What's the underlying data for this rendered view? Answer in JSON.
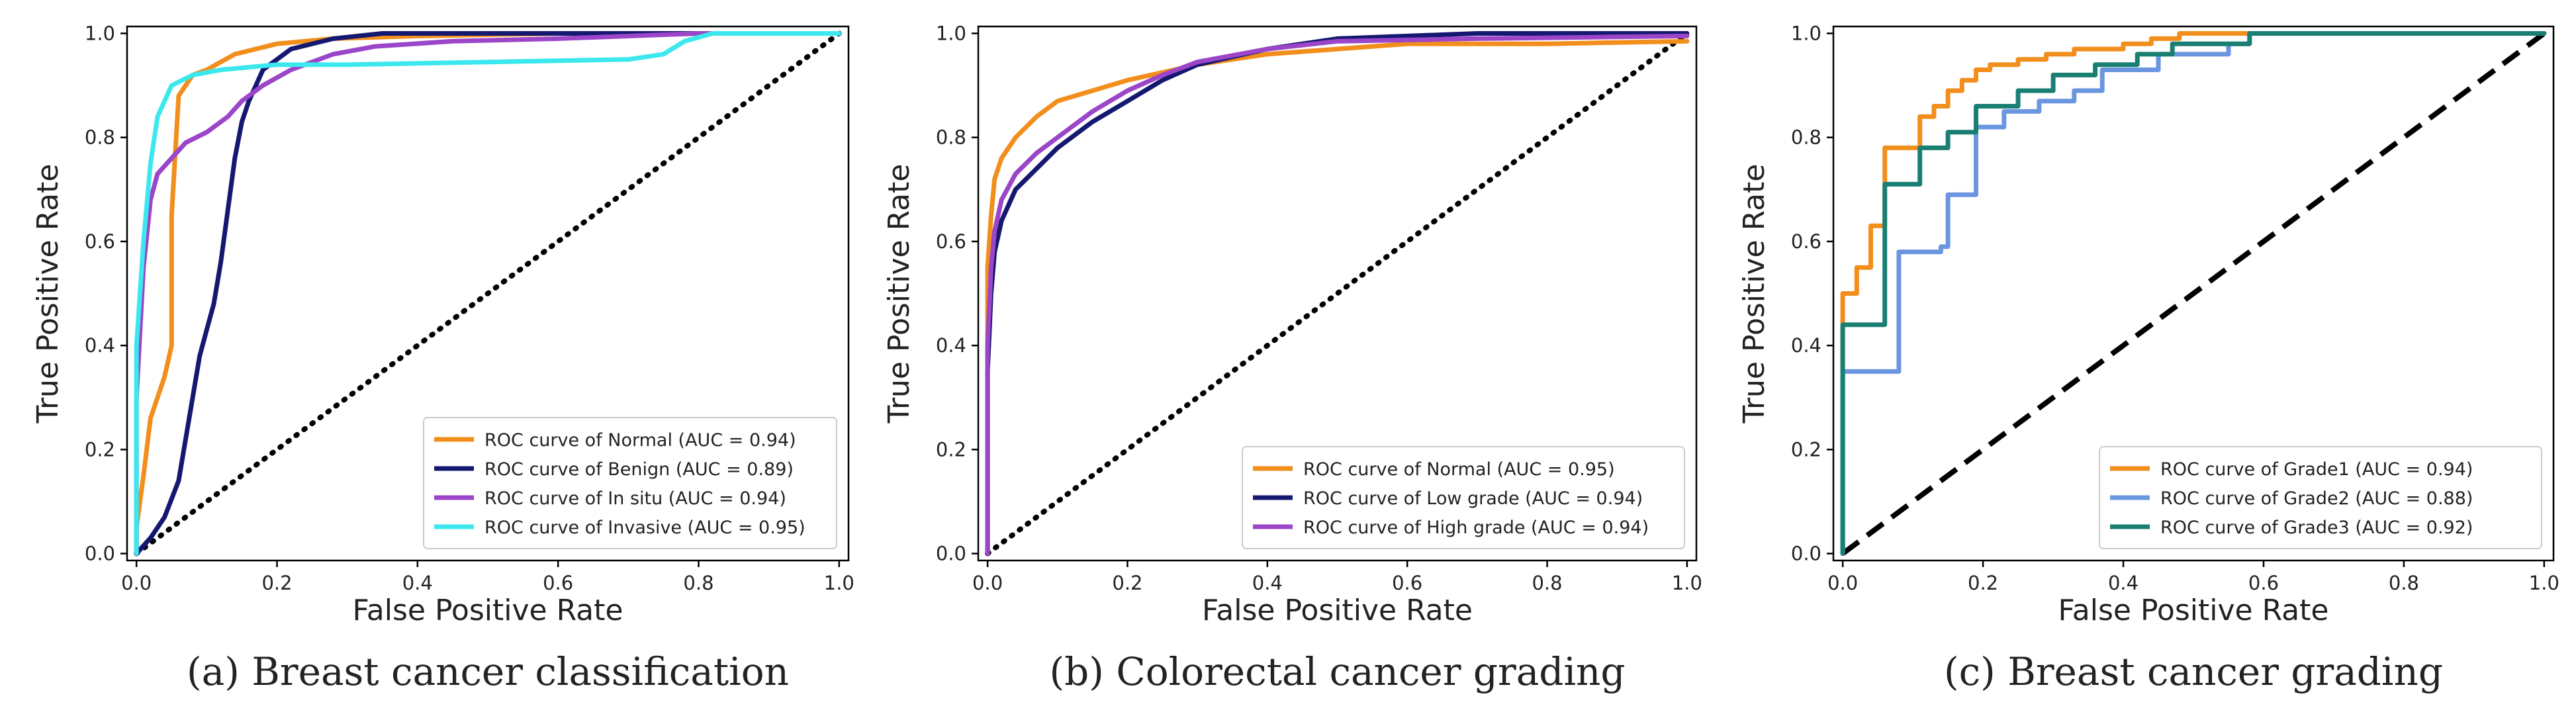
{
  "chart_data": [
    {
      "type": "line",
      "caption": "(a) Breast cancer classification",
      "xlabel": "False Positive Rate",
      "ylabel": "True Positive Rate",
      "xlim": [
        0.0,
        1.0
      ],
      "ylim": [
        0.0,
        1.0
      ],
      "xticks": [
        "0.0",
        "0.2",
        "0.4",
        "0.6",
        "0.8",
        "1.0"
      ],
      "yticks": [
        "0.0",
        "0.2",
        "0.4",
        "0.6",
        "0.8",
        "1.0"
      ],
      "grid": false,
      "legend_position": "lower-right",
      "diagonal": {
        "style": "dotted",
        "x": [
          0,
          1
        ],
        "y": [
          0,
          1
        ]
      },
      "series": [
        {
          "name": "ROC curve of  Normal (AUC = 0.94)",
          "color": "#f28e1c",
          "x": [
            0.0,
            0.0,
            0.01,
            0.02,
            0.03,
            0.04,
            0.05,
            0.05,
            0.06,
            0.08,
            0.1,
            0.14,
            0.2,
            0.28,
            0.4,
            0.6,
            0.8,
            1.0
          ],
          "y": [
            0.0,
            0.05,
            0.15,
            0.26,
            0.3,
            0.34,
            0.4,
            0.65,
            0.88,
            0.92,
            0.93,
            0.96,
            0.98,
            0.99,
            0.995,
            1.0,
            1.0,
            1.0
          ]
        },
        {
          "name": "ROC curve of  Benign (AUC = 0.89)",
          "color": "#151870",
          "x": [
            0.0,
            0.02,
            0.04,
            0.06,
            0.07,
            0.08,
            0.09,
            0.1,
            0.11,
            0.12,
            0.13,
            0.14,
            0.15,
            0.16,
            0.18,
            0.22,
            0.28,
            0.35,
            0.5,
            0.7,
            1.0
          ],
          "y": [
            0.0,
            0.03,
            0.07,
            0.14,
            0.22,
            0.3,
            0.38,
            0.43,
            0.48,
            0.56,
            0.66,
            0.76,
            0.83,
            0.87,
            0.93,
            0.97,
            0.99,
            1.0,
            1.0,
            1.0,
            1.0
          ]
        },
        {
          "name": "ROC curve of  In situ (AUC = 0.94)",
          "color": "#9b45c8",
          "x": [
            0.0,
            0.0,
            0.01,
            0.02,
            0.03,
            0.05,
            0.07,
            0.1,
            0.13,
            0.15,
            0.18,
            0.22,
            0.28,
            0.34,
            0.45,
            0.6,
            0.8,
            1.0
          ],
          "y": [
            0.0,
            0.3,
            0.55,
            0.68,
            0.73,
            0.76,
            0.79,
            0.81,
            0.84,
            0.87,
            0.9,
            0.93,
            0.96,
            0.975,
            0.985,
            0.99,
            1.0,
            1.0
          ]
        },
        {
          "name": "ROC curve of  Invasive (AUC = 0.95)",
          "color": "#3ce8ee",
          "x": [
            0.0,
            0.0,
            0.01,
            0.02,
            0.03,
            0.05,
            0.08,
            0.12,
            0.2,
            0.3,
            0.5,
            0.7,
            0.75,
            0.78,
            0.82,
            0.9,
            1.0
          ],
          "y": [
            0.0,
            0.4,
            0.6,
            0.75,
            0.84,
            0.9,
            0.92,
            0.93,
            0.94,
            0.94,
            0.945,
            0.95,
            0.96,
            0.985,
            1.0,
            1.0,
            1.0
          ]
        }
      ]
    },
    {
      "type": "line",
      "caption": "(b) Colorectal cancer grading",
      "xlabel": "False Positive Rate",
      "ylabel": "True Positive Rate",
      "xlim": [
        0.0,
        1.0
      ],
      "ylim": [
        0.0,
        1.0
      ],
      "xticks": [
        "0.0",
        "0.2",
        "0.4",
        "0.6",
        "0.8",
        "1.0"
      ],
      "yticks": [
        "0.0",
        "0.2",
        "0.4",
        "0.6",
        "0.8",
        "1.0"
      ],
      "grid": false,
      "legend_position": "lower-right",
      "diagonal": {
        "style": "dotted",
        "x": [
          0,
          1
        ],
        "y": [
          0,
          1
        ]
      },
      "series": [
        {
          "name": "ROC curve of  Normal (AUC = 0.95)",
          "color": "#f28e1c",
          "x": [
            0.0,
            0.0,
            0.005,
            0.01,
            0.02,
            0.04,
            0.07,
            0.1,
            0.15,
            0.2,
            0.3,
            0.4,
            0.5,
            0.6,
            0.8,
            1.0
          ],
          "y": [
            0.0,
            0.55,
            0.65,
            0.72,
            0.76,
            0.8,
            0.84,
            0.87,
            0.89,
            0.91,
            0.94,
            0.96,
            0.97,
            0.98,
            0.98,
            0.985
          ]
        },
        {
          "name": "ROC curve of  Low grade (AUC = 0.94)",
          "color": "#151870",
          "x": [
            0.0,
            0.0,
            0.005,
            0.01,
            0.02,
            0.04,
            0.07,
            0.1,
            0.15,
            0.2,
            0.25,
            0.3,
            0.4,
            0.5,
            0.7,
            1.0
          ],
          "y": [
            0.0,
            0.35,
            0.5,
            0.58,
            0.64,
            0.7,
            0.74,
            0.78,
            0.83,
            0.87,
            0.91,
            0.94,
            0.97,
            0.99,
            1.0,
            1.0
          ]
        },
        {
          "name": "ROC curve of  High grade (AUC = 0.94)",
          "color": "#9b45c8",
          "x": [
            0.0,
            0.0,
            0.005,
            0.01,
            0.02,
            0.04,
            0.07,
            0.1,
            0.15,
            0.2,
            0.25,
            0.3,
            0.4,
            0.5,
            0.7,
            1.0
          ],
          "y": [
            0.0,
            0.4,
            0.55,
            0.62,
            0.68,
            0.73,
            0.77,
            0.8,
            0.85,
            0.89,
            0.92,
            0.945,
            0.97,
            0.985,
            0.99,
            0.995
          ]
        }
      ]
    },
    {
      "type": "line",
      "caption": "(c) Breast cancer grading",
      "xlabel": "False Positive Rate",
      "ylabel": "True Positive Rate",
      "xlim": [
        0.0,
        1.0
      ],
      "ylim": [
        0.0,
        1.0
      ],
      "xticks": [
        "0.0",
        "0.2",
        "0.4",
        "0.6",
        "0.8",
        "1.0"
      ],
      "yticks": [
        "0.0",
        "0.2",
        "0.4",
        "0.6",
        "0.8",
        "1.0"
      ],
      "grid": false,
      "legend_position": "lower-right",
      "diagonal": {
        "style": "dashed",
        "x": [
          0,
          1
        ],
        "y": [
          0,
          1
        ]
      },
      "series": [
        {
          "name": "ROC curve of  Grade1 (AUC = 0.94)",
          "color": "#f28e1c",
          "x": [
            0.0,
            0.0,
            0.0,
            0.02,
            0.02,
            0.04,
            0.04,
            0.06,
            0.06,
            0.11,
            0.11,
            0.13,
            0.13,
            0.15,
            0.15,
            0.17,
            0.17,
            0.19,
            0.19,
            0.21,
            0.21,
            0.25,
            0.25,
            0.29,
            0.29,
            0.33,
            0.33,
            0.4,
            0.4,
            0.44,
            0.44,
            0.48,
            0.48,
            1.0
          ],
          "y": [
            0.0,
            0.44,
            0.5,
            0.5,
            0.55,
            0.55,
            0.63,
            0.63,
            0.78,
            0.78,
            0.84,
            0.84,
            0.86,
            0.86,
            0.89,
            0.89,
            0.91,
            0.91,
            0.93,
            0.93,
            0.94,
            0.94,
            0.95,
            0.95,
            0.96,
            0.96,
            0.97,
            0.97,
            0.98,
            0.98,
            0.99,
            0.99,
            1.0,
            1.0
          ]
        },
        {
          "name": "ROC curve of  Grade2 (AUC = 0.88)",
          "color": "#6a96e0",
          "x": [
            0.0,
            0.0,
            0.0,
            0.08,
            0.08,
            0.14,
            0.14,
            0.15,
            0.15,
            0.19,
            0.19,
            0.23,
            0.23,
            0.28,
            0.28,
            0.33,
            0.33,
            0.37,
            0.37,
            0.45,
            0.45,
            0.55,
            0.55,
            0.58,
            0.58,
            1.0
          ],
          "y": [
            0.0,
            0.06,
            0.35,
            0.35,
            0.58,
            0.58,
            0.59,
            0.59,
            0.69,
            0.69,
            0.82,
            0.82,
            0.85,
            0.85,
            0.87,
            0.87,
            0.89,
            0.89,
            0.93,
            0.93,
            0.96,
            0.96,
            0.98,
            0.98,
            1.0,
            1.0
          ]
        },
        {
          "name": "ROC curve of  Grade3 (AUC = 0.92)",
          "color": "#1a7f73",
          "x": [
            0.0,
            0.0,
            0.0,
            0.06,
            0.06,
            0.11,
            0.11,
            0.15,
            0.15,
            0.19,
            0.19,
            0.25,
            0.25,
            0.3,
            0.3,
            0.36,
            0.36,
            0.42,
            0.42,
            0.47,
            0.47,
            0.58,
            0.58,
            1.0
          ],
          "y": [
            0.0,
            0.11,
            0.44,
            0.44,
            0.71,
            0.71,
            0.78,
            0.78,
            0.81,
            0.81,
            0.86,
            0.86,
            0.89,
            0.89,
            0.92,
            0.92,
            0.94,
            0.94,
            0.96,
            0.96,
            0.98,
            0.98,
            1.0,
            1.0
          ]
        }
      ]
    }
  ]
}
